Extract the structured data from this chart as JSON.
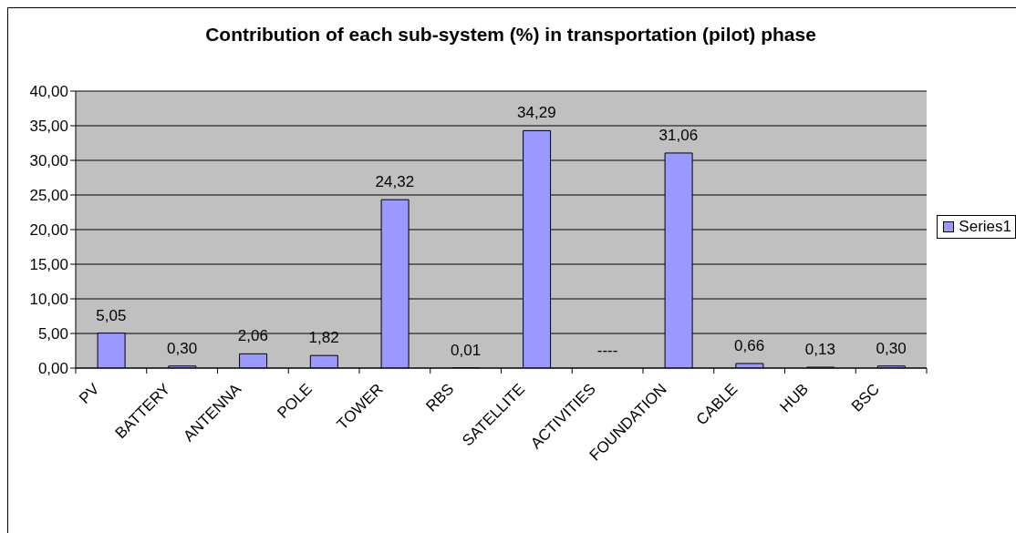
{
  "chart_data": {
    "type": "bar",
    "title": "Contribution of each sub-system (%) in transportation (pilot) phase",
    "categories": [
      "PV",
      "BATTERY",
      "ANTENNA",
      "POLE",
      "TOWER",
      "RBS",
      "SATELLITE",
      "ACTIVITIES",
      "FOUNDATION",
      "CABLE",
      "HUB",
      "BSC"
    ],
    "series": [
      {
        "name": "Series1",
        "color": "#9999ff",
        "values": [
          5.05,
          0.3,
          2.06,
          1.82,
          24.32,
          0.01,
          34.29,
          null,
          31.06,
          0.66,
          0.13,
          0.3
        ],
        "value_labels": [
          "5,05",
          "0,30",
          "2,06",
          "1,82",
          "24,32",
          "0,01",
          "34,29",
          "----",
          "31,06",
          "0,66",
          "0,13",
          "0,30"
        ]
      }
    ],
    "ylim": [
      0,
      40
    ],
    "yticks": [
      {
        "value": 0,
        "label": "0,00"
      },
      {
        "value": 5,
        "label": "5,00"
      },
      {
        "value": 10,
        "label": "10,00"
      },
      {
        "value": 15,
        "label": "15,00"
      },
      {
        "value": 20,
        "label": "20,00"
      },
      {
        "value": 25,
        "label": "25,00"
      },
      {
        "value": 30,
        "label": "30,00"
      },
      {
        "value": 35,
        "label": "35,00"
      },
      {
        "value": 40,
        "label": "40,00"
      }
    ],
    "grid": "y",
    "legend": "right"
  }
}
